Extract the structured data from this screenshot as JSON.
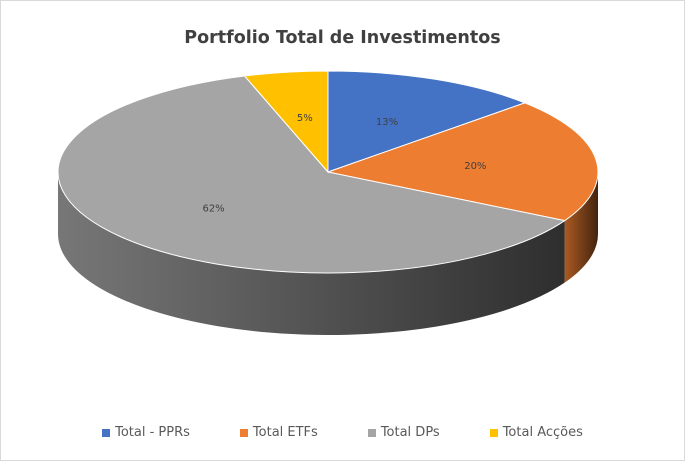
{
  "chart_data": {
    "type": "pie",
    "title": "Portfolio Total de Investimentos",
    "categories": [
      "Total - PPRs",
      "Total ETFs",
      "Total DPs",
      "Total Acções"
    ],
    "values": [
      13,
      20,
      62,
      5
    ],
    "labels": [
      "13%",
      "20%",
      "62%",
      "5%"
    ],
    "colors": [
      "#4472c4",
      "#ed7d31",
      "#a5a5a5",
      "#ffc000"
    ],
    "legend_position": "bottom",
    "style": "3d"
  }
}
